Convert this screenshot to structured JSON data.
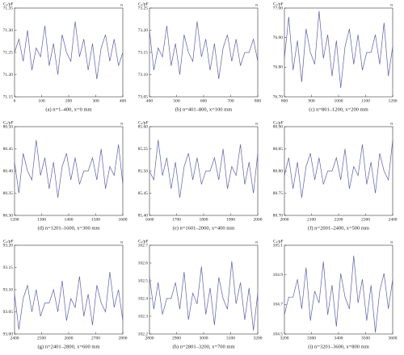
{
  "chart_data": [
    {
      "type": "line",
      "ylabel": "Cₓ/pF",
      "xlabel": "n",
      "caption": "(a) n=1–400, x=0 mm",
      "color": "#5a5fa8",
      "xlim": [
        0,
        400
      ],
      "xticks": [
        0,
        100,
        200,
        300,
        400
      ],
      "ylim": [
        71.15,
        71.35
      ],
      "yticks": [
        71.15,
        {
          "value": 71.2,
          "label": "71.20"
        },
        71.25,
        {
          "value": 71.3,
          "label": "71.30"
        },
        71.35
      ],
      "x": [
        0,
        16,
        32,
        48,
        64,
        80,
        96,
        112,
        128,
        144,
        160,
        176,
        192,
        208,
        224,
        240,
        256,
        272,
        288,
        304,
        320,
        336,
        352,
        368,
        384,
        400
      ],
      "values": [
        71.25,
        71.28,
        71.23,
        71.3,
        71.21,
        71.26,
        71.24,
        71.31,
        71.22,
        71.27,
        71.2,
        71.29,
        71.25,
        71.23,
        71.32,
        71.24,
        71.28,
        71.21,
        71.27,
        71.19,
        71.26,
        71.29,
        71.23,
        71.28,
        71.22,
        71.25
      ]
    },
    {
      "type": "line",
      "ylabel": "Cₓ/pF",
      "xlabel": "n",
      "caption": "(b) n=401–800, x=100 mm",
      "color": "#5a5fa8",
      "xlim": [
        400,
        800
      ],
      "xticks": [
        400,
        500,
        600,
        700,
        800
      ],
      "ylim": [
        73.05,
        73.25
      ],
      "yticks": [
        73.05,
        {
          "value": 73.1,
          "label": "73.10"
        },
        73.15,
        {
          "value": 73.2,
          "label": "73.20"
        },
        73.25
      ],
      "x": [
        400,
        416,
        432,
        448,
        464,
        480,
        496,
        512,
        528,
        544,
        560,
        576,
        592,
        608,
        624,
        640,
        656,
        672,
        688,
        704,
        720,
        736,
        752,
        768,
        784,
        800
      ],
      "values": [
        73.2,
        73.11,
        73.16,
        73.14,
        73.21,
        73.12,
        73.17,
        73.1,
        73.19,
        73.15,
        73.13,
        73.22,
        73.14,
        73.18,
        73.11,
        73.17,
        73.09,
        73.16,
        73.19,
        73.13,
        73.18,
        73.12,
        73.15,
        73.15,
        73.18,
        73.13
      ]
    },
    {
      "type": "line",
      "ylabel": "Cₓ/pF",
      "xlabel": "n",
      "caption": "(c) n=801–1200, x=200 mm",
      "color": "#5a5fa8",
      "xlim": [
        800,
        1200
      ],
      "xticks": [
        800,
        900,
        1000,
        1100,
        1200
      ],
      "ylim": [
        76.7,
        77.0
      ],
      "yticks": [
        {
          "value": 76.7,
          "label": "76.70"
        },
        {
          "value": 76.8,
          "label": "76.80"
        },
        {
          "value": 76.9,
          "label": "76.90"
        },
        {
          "value": 77.0,
          "label": "77.00"
        }
      ],
      "x": [
        800,
        816,
        832,
        848,
        864,
        880,
        896,
        912,
        928,
        944,
        960,
        976,
        992,
        1008,
        1024,
        1040,
        1056,
        1072,
        1088,
        1104,
        1120,
        1136,
        1152,
        1168,
        1184,
        1200
      ],
      "values": [
        76.83,
        76.97,
        76.79,
        76.89,
        76.75,
        76.93,
        76.85,
        76.81,
        76.99,
        76.83,
        76.91,
        76.77,
        76.89,
        76.73,
        76.87,
        76.93,
        76.81,
        76.91,
        76.79,
        76.85,
        76.85,
        76.91,
        76.81,
        76.95,
        76.77,
        76.87
      ]
    },
    {
      "type": "line",
      "ylabel": "Cₓ/pF",
      "xlabel": "n",
      "caption": "(d) n=1201–1600, x=300 mm",
      "color": "#5a5fa8",
      "xlim": [
        1200,
        1600
      ],
      "xticks": [
        1200,
        1300,
        1400,
        1500,
        1600
      ],
      "ylim": [
        80.3,
        80.5
      ],
      "yticks": [
        {
          "value": 80.3,
          "label": "80.30"
        },
        80.35,
        {
          "value": 80.4,
          "label": "80.40"
        },
        80.45,
        {
          "value": 80.5,
          "label": "80.50"
        }
      ],
      "x": [
        1200,
        1216,
        1232,
        1248,
        1264,
        1280,
        1296,
        1312,
        1328,
        1344,
        1360,
        1376,
        1392,
        1408,
        1424,
        1440,
        1456,
        1472,
        1488,
        1504,
        1520,
        1536,
        1552,
        1568,
        1584,
        1600
      ],
      "values": [
        80.42,
        80.35,
        80.44,
        80.4,
        80.38,
        80.47,
        80.39,
        80.43,
        80.36,
        80.42,
        80.34,
        80.41,
        80.44,
        80.38,
        80.43,
        80.37,
        80.4,
        80.4,
        80.43,
        80.38,
        80.45,
        80.36,
        80.41,
        80.39,
        80.46,
        80.37
      ]
    },
    {
      "type": "line",
      "ylabel": "Cₓ/pF",
      "xlabel": "n",
      "caption": "(e) n=1601–2000, x=400 mm",
      "color": "#5a5fa8",
      "xlim": [
        1600,
        2000
      ],
      "xticks": [
        1600,
        1700,
        1800,
        1900,
        2000
      ],
      "ylim": [
        85.4,
        85.6
      ],
      "yticks": [
        {
          "value": 85.4,
          "label": "85.40"
        },
        85.45,
        {
          "value": 85.5,
          "label": "85.50"
        },
        85.55,
        {
          "value": 85.6,
          "label": "85.60"
        }
      ],
      "x": [
        1600,
        1616,
        1632,
        1648,
        1664,
        1680,
        1696,
        1712,
        1728,
        1744,
        1760,
        1776,
        1792,
        1808,
        1824,
        1840,
        1856,
        1872,
        1888,
        1904,
        1920,
        1936,
        1952,
        1968,
        1984,
        2000
      ],
      "values": [
        85.5,
        85.48,
        85.57,
        85.49,
        85.53,
        85.46,
        85.52,
        85.44,
        85.51,
        85.54,
        85.48,
        85.53,
        85.47,
        85.5,
        85.5,
        85.53,
        85.48,
        85.55,
        85.46,
        85.51,
        85.49,
        85.56,
        85.47,
        85.52,
        85.45,
        85.54
      ]
    },
    {
      "type": "line",
      "ylabel": "Cₓ/pF",
      "xlabel": "n",
      "caption": "(f) n=2001–2400, x=500 mm",
      "color": "#5a5fa8",
      "xlim": [
        2000,
        2400
      ],
      "xticks": [
        2000,
        2100,
        2200,
        2300,
        2400
      ],
      "ylim": [
        88.7,
        88.9
      ],
      "yticks": [
        {
          "value": 88.7,
          "label": "88.70"
        },
        88.75,
        {
          "value": 88.8,
          "label": "88.80"
        },
        88.85,
        {
          "value": 88.9,
          "label": "88.90"
        }
      ],
      "x": [
        2000,
        2016,
        2032,
        2048,
        2064,
        2080,
        2096,
        2112,
        2128,
        2144,
        2160,
        2176,
        2192,
        2208,
        2224,
        2240,
        2256,
        2272,
        2288,
        2304,
        2320,
        2336,
        2352,
        2368,
        2384,
        2400
      ],
      "values": [
        88.79,
        88.83,
        88.76,
        88.82,
        88.74,
        88.81,
        88.84,
        88.78,
        88.83,
        88.77,
        88.8,
        88.8,
        88.83,
        88.78,
        88.85,
        88.76,
        88.81,
        88.79,
        88.86,
        88.77,
        88.82,
        88.75,
        88.84,
        88.8,
        88.78,
        88.87
      ]
    },
    {
      "type": "line",
      "ylabel": "Cₓ/pF",
      "xlabel": "n",
      "caption": "(g) n=2401–2800, x=600 mm",
      "color": "#5a5fa8",
      "xlim": [
        2400,
        2800
      ],
      "xticks": [
        2400,
        2500,
        2600,
        2700,
        2800
      ],
      "ylim": [
        93.0,
        93.2
      ],
      "yticks": [
        {
          "value": 93.0,
          "label": "93.00"
        },
        93.05,
        {
          "value": 93.1,
          "label": "93.10"
        },
        93.15,
        {
          "value": 93.2,
          "label": "93.20"
        }
      ],
      "x": [
        2400,
        2416,
        2432,
        2448,
        2464,
        2480,
        2496,
        2512,
        2528,
        2544,
        2560,
        2576,
        2592,
        2608,
        2624,
        2640,
        2656,
        2672,
        2688,
        2704,
        2720,
        2736,
        2752,
        2768,
        2784,
        2800
      ],
      "values": [
        93.09,
        93.01,
        93.08,
        93.11,
        93.05,
        93.1,
        93.04,
        93.07,
        93.07,
        93.1,
        93.05,
        93.12,
        93.03,
        93.08,
        93.06,
        93.13,
        93.04,
        93.09,
        93.02,
        93.11,
        93.07,
        93.05,
        93.14,
        93.06,
        93.1,
        93.03
      ]
    },
    {
      "type": "line",
      "ylabel": "Cₓ/pF",
      "xlabel": "n",
      "caption": "(h) n=2801–3200, x=700 mm",
      "color": "#5a5fa8",
      "xlim": [
        2800,
        3200
      ],
      "xticks": [
        2800,
        2900,
        3000,
        3100,
        3200
      ],
      "ylim": [
        102.2,
        102.7
      ],
      "yticks": [
        102.2,
        102.3,
        102.4,
        102.5,
        102.6,
        102.7
      ],
      "x": [
        2800,
        2816,
        2832,
        2848,
        2864,
        2880,
        2896,
        2912,
        2928,
        2944,
        2960,
        2976,
        2992,
        3008,
        3024,
        3040,
        3056,
        3072,
        3088,
        3104,
        3120,
        3136,
        3152,
        3168,
        3184,
        3200
      ],
      "values": [
        102.52,
        102.34,
        102.49,
        102.31,
        102.4,
        102.4,
        102.49,
        102.34,
        102.55,
        102.28,
        102.43,
        102.37,
        102.58,
        102.31,
        102.46,
        102.25,
        102.52,
        102.4,
        102.34,
        102.61,
        102.37,
        102.49,
        102.28,
        102.46,
        102.22,
        102.43
      ]
    },
    {
      "type": "line",
      "ylabel": "Cₓ/pF",
      "xlabel": "n",
      "caption": "(i) n=3201–3600, x=800 mm",
      "color": "#5a5fa8",
      "xlim": [
        3200,
        3600
      ],
      "xticks": [
        3200,
        3300,
        3400,
        3500,
        3600
      ],
      "ylim": [
        104.5,
        105.1
      ],
      "yticks": [
        104.5,
        104.7,
        104.9,
        105.1
      ],
      "x": [
        3200,
        3216,
        3232,
        3248,
        3264,
        3280,
        3296,
        3312,
        3328,
        3344,
        3360,
        3376,
        3392,
        3408,
        3424,
        3440,
        3456,
        3472,
        3488,
        3504,
        3520,
        3536,
        3552,
        3568,
        3584,
        3600
      ],
      "values": [
        104.63,
        104.75,
        104.75,
        104.87,
        104.67,
        104.95,
        104.59,
        104.79,
        104.71,
        104.99,
        104.63,
        104.83,
        104.55,
        104.91,
        104.75,
        104.67,
        105.03,
        104.71,
        104.87,
        104.59,
        104.83,
        104.51,
        104.79,
        104.91,
        104.67,
        104.87
      ]
    }
  ]
}
